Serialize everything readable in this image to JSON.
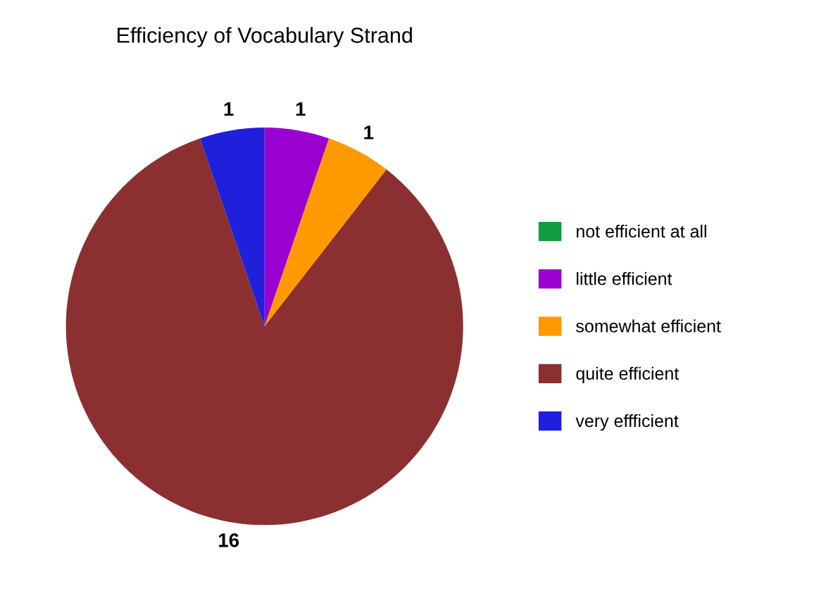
{
  "chart_data": {
    "type": "pie",
    "title": "Efficiency of Vocabulary Strand",
    "categories": [
      "not efficient at all",
      "little efficient",
      "somewhat efficient",
      "quite efficient",
      "very effficient"
    ],
    "values": [
      0,
      1,
      1,
      16,
      1
    ],
    "colors": [
      "#0f9d3f",
      "#9a00d0",
      "#ff9900",
      "#8c2f30",
      "#1f1fdc"
    ],
    "value_labels": [
      null,
      "1",
      "1",
      "16",
      "1"
    ],
    "legend": "right"
  }
}
